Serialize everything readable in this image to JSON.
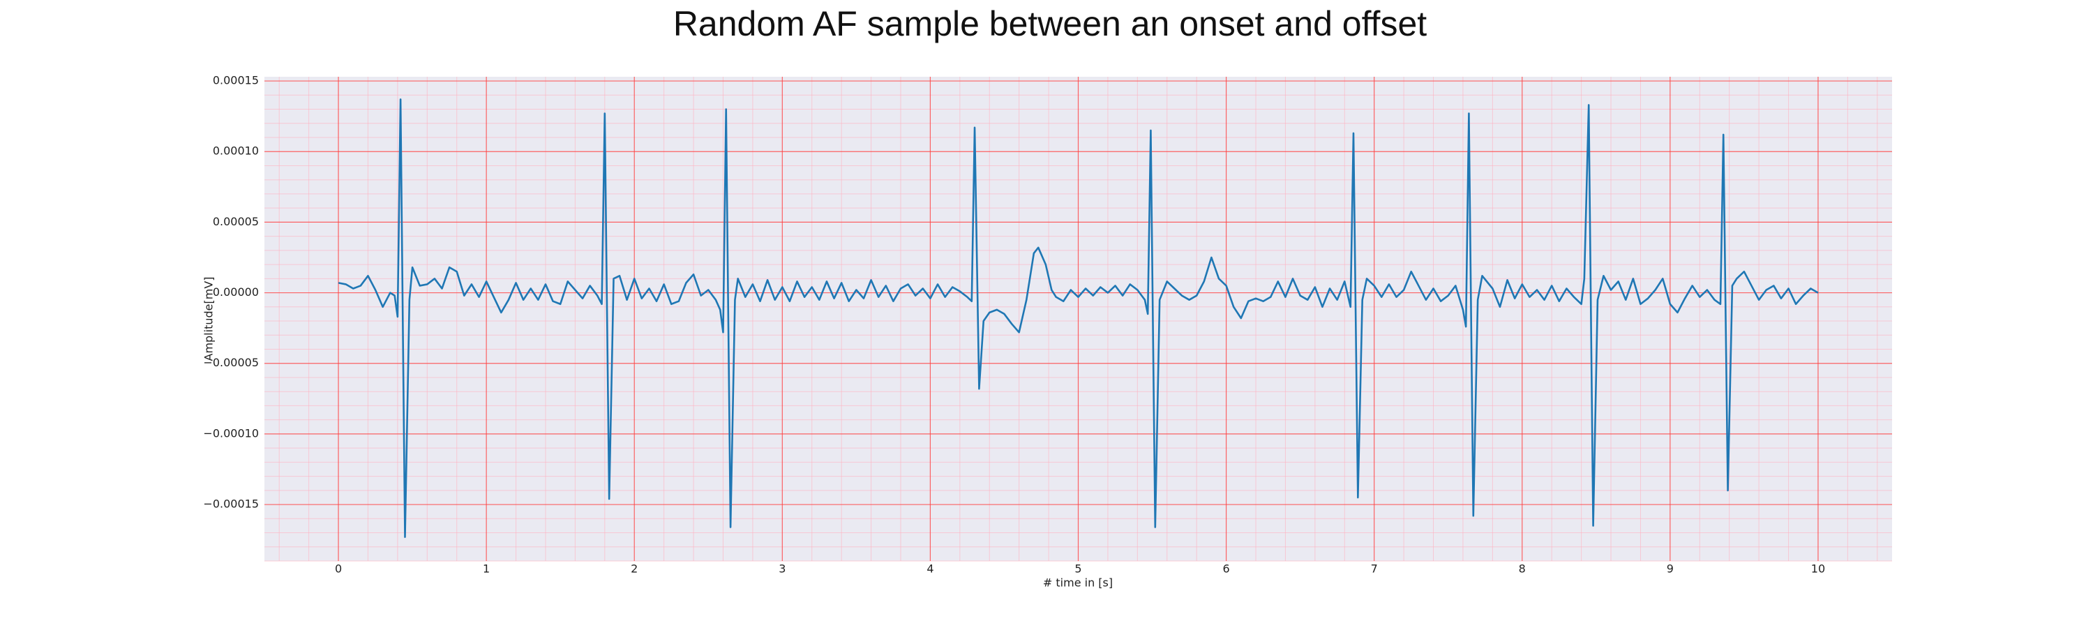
{
  "chart_data": {
    "type": "line",
    "title": "Random AF sample between an onset and offset",
    "xlabel": "# time in [s]",
    "ylabel": "Amplitude[mV]",
    "color": "#1f77b4",
    "grid": true,
    "minor_grid": true,
    "minor_per_major": 5,
    "xlim": [
      -0.5,
      10.5
    ],
    "xticks": [
      0,
      1,
      2,
      3,
      4,
      5,
      6,
      7,
      8,
      9,
      10
    ],
    "ylim": [
      -0.00019,
      0.000153
    ],
    "yticks": [
      {
        "value": 0.00015,
        "label": "0.00015"
      },
      {
        "value": 0.0001,
        "label": "0.00010"
      },
      {
        "value": 5e-05,
        "label": "0.00005"
      },
      {
        "value": 0,
        "label": "0.00000"
      },
      {
        "value": -5e-05,
        "label": "−0.00005"
      },
      {
        "value": -0.0001,
        "label": "−0.00010"
      },
      {
        "value": -0.00015,
        "label": "−0.00015"
      }
    ],
    "x": [
      0.0,
      0.05,
      0.1,
      0.15,
      0.2,
      0.25,
      0.3,
      0.35,
      0.38,
      0.4,
      0.42,
      0.45,
      0.48,
      0.5,
      0.55,
      0.6,
      0.65,
      0.7,
      0.75,
      0.8,
      0.85,
      0.9,
      0.95,
      1.0,
      1.05,
      1.1,
      1.15,
      1.2,
      1.25,
      1.3,
      1.35,
      1.4,
      1.45,
      1.5,
      1.55,
      1.6,
      1.65,
      1.7,
      1.75,
      1.78,
      1.8,
      1.83,
      1.86,
      1.9,
      1.95,
      2.0,
      2.05,
      2.1,
      2.15,
      2.2,
      2.25,
      2.3,
      2.35,
      2.4,
      2.45,
      2.5,
      2.55,
      2.58,
      2.6,
      2.62,
      2.65,
      2.68,
      2.7,
      2.75,
      2.8,
      2.85,
      2.9,
      2.95,
      3.0,
      3.05,
      3.1,
      3.15,
      3.2,
      3.25,
      3.3,
      3.35,
      3.4,
      3.45,
      3.5,
      3.55,
      3.6,
      3.65,
      3.7,
      3.75,
      3.8,
      3.85,
      3.9,
      3.95,
      4.0,
      4.05,
      4.1,
      4.15,
      4.2,
      4.25,
      4.28,
      4.3,
      4.33,
      4.36,
      4.4,
      4.45,
      4.5,
      4.55,
      4.6,
      4.65,
      4.7,
      4.73,
      4.78,
      4.82,
      4.85,
      4.9,
      4.95,
      5.0,
      5.05,
      5.1,
      5.15,
      5.2,
      5.25,
      5.3,
      5.35,
      5.4,
      5.45,
      5.47,
      5.49,
      5.52,
      5.55,
      5.6,
      5.65,
      5.7,
      5.75,
      5.8,
      5.85,
      5.9,
      5.95,
      6.0,
      6.05,
      6.1,
      6.15,
      6.2,
      6.25,
      6.3,
      6.35,
      6.4,
      6.45,
      6.5,
      6.55,
      6.6,
      6.65,
      6.7,
      6.75,
      6.8,
      6.84,
      6.86,
      6.89,
      6.92,
      6.95,
      7.0,
      7.05,
      7.1,
      7.15,
      7.2,
      7.25,
      7.3,
      7.35,
      7.4,
      7.45,
      7.5,
      7.55,
      7.6,
      7.62,
      7.64,
      7.67,
      7.7,
      7.73,
      7.8,
      7.85,
      7.9,
      7.95,
      8.0,
      8.05,
      8.1,
      8.15,
      8.2,
      8.25,
      8.3,
      8.35,
      8.4,
      8.42,
      8.45,
      8.48,
      8.51,
      8.55,
      8.6,
      8.65,
      8.7,
      8.75,
      8.8,
      8.85,
      8.9,
      8.95,
      9.0,
      9.05,
      9.1,
      9.15,
      9.2,
      9.25,
      9.3,
      9.34,
      9.36,
      9.39,
      9.42,
      9.45,
      9.5,
      9.55,
      9.6,
      9.65,
      9.7,
      9.75,
      9.8,
      9.85,
      9.9,
      9.95,
      10.0
    ],
    "values": [
      7e-06,
      6e-06,
      3e-06,
      5e-06,
      1.2e-05,
      2e-06,
      -1e-05,
      0,
      -2e-06,
      -1.7e-05,
      0.000137,
      -0.000173,
      -5e-06,
      1.8e-05,
      5e-06,
      6e-06,
      1e-05,
      3e-06,
      1.8e-05,
      1.5e-05,
      -2e-06,
      6e-06,
      -3e-06,
      8e-06,
      -3e-06,
      -1.4e-05,
      -5e-06,
      7e-06,
      -5e-06,
      3e-06,
      -5e-06,
      6e-06,
      -6e-06,
      -8e-06,
      8e-06,
      2e-06,
      -4e-06,
      5e-06,
      -2e-06,
      -8e-06,
      0.000127,
      -0.000146,
      1e-05,
      1.2e-05,
      -5e-06,
      1e-05,
      -4e-06,
      3e-06,
      -6e-06,
      6e-06,
      -8e-06,
      -6e-06,
      7e-06,
      1.3e-05,
      -2e-06,
      2e-06,
      -5e-06,
      -1.2e-05,
      -2.8e-05,
      0.00013,
      -0.000166,
      -5e-06,
      1e-05,
      -3e-06,
      6e-06,
      -6e-06,
      9e-06,
      -5e-06,
      4e-06,
      -6e-06,
      8e-06,
      -3e-06,
      4e-06,
      -5e-06,
      8e-06,
      -4e-06,
      7e-06,
      -6e-06,
      2e-06,
      -4e-06,
      9e-06,
      -3e-06,
      5e-06,
      -6e-06,
      3e-06,
      6e-06,
      -2e-06,
      3e-06,
      -4e-06,
      6e-06,
      -3e-06,
      4e-06,
      1e-06,
      -3e-06,
      -6e-06,
      0.000117,
      -6.8e-05,
      -2e-05,
      -1.4e-05,
      -1.2e-05,
      -1.5e-05,
      -2.2e-05,
      -2.8e-05,
      -5e-06,
      2.8e-05,
      3.2e-05,
      2e-05,
      2e-06,
      -3e-06,
      -6e-06,
      2e-06,
      -3e-06,
      3e-06,
      -2e-06,
      4e-06,
      0,
      5e-06,
      -2e-06,
      6e-06,
      2e-06,
      -5e-06,
      -1.5e-05,
      0.000115,
      -0.000166,
      -5e-06,
      8e-06,
      3e-06,
      -2e-06,
      -5e-06,
      -2e-06,
      8e-06,
      2.5e-05,
      1e-05,
      5e-06,
      -1e-05,
      -1.8e-05,
      -6e-06,
      -4e-06,
      -6e-06,
      -3e-06,
      8e-06,
      -3e-06,
      1e-05,
      -2e-06,
      -5e-06,
      4e-06,
      -1e-05,
      3e-06,
      -5e-06,
      8e-06,
      -1e-05,
      0.000113,
      -0.000145,
      -5e-06,
      1e-05,
      5e-06,
      -3e-06,
      6e-06,
      -3e-06,
      2e-06,
      1.5e-05,
      5e-06,
      -5e-06,
      3e-06,
      -6e-06,
      -2e-06,
      5e-06,
      -1.2e-05,
      -2.4e-05,
      0.000127,
      -0.000158,
      -5e-06,
      1.2e-05,
      3e-06,
      -1e-05,
      9e-06,
      -4e-06,
      6e-06,
      -3e-06,
      2e-06,
      -5e-06,
      5e-06,
      -6e-06,
      3e-06,
      -3e-06,
      -8e-06,
      1e-05,
      0.000133,
      -0.000165,
      -5e-06,
      1.2e-05,
      2e-06,
      8e-06,
      -5e-06,
      1e-05,
      -8e-06,
      -4e-06,
      2e-06,
      1e-05,
      -8e-06,
      -1.4e-05,
      -4e-06,
      5e-06,
      -3e-06,
      2e-06,
      -5e-06,
      -8e-06,
      0.000112,
      -0.00014,
      5e-06,
      1e-05,
      1.5e-05,
      5e-06,
      -5e-06,
      2e-06,
      5e-06,
      -4e-06,
      3e-06,
      -8e-06,
      -2e-06,
      3e-06,
      0
    ]
  }
}
